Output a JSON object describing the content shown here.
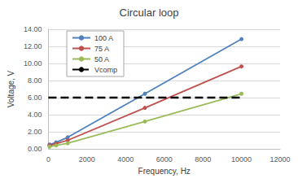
{
  "chart_data": {
    "type": "line",
    "title": "Circular loop",
    "x_label": "Frequency, Hz",
    "y_label": "Voltage, V",
    "series": [
      {
        "name": "100 A",
        "color": "#4F81BD",
        "marker": "circle",
        "line_style": "solid",
        "x": [
          60,
          400,
          1000,
          5000,
          10000
        ],
        "values": [
          0.5,
          0.75,
          1.35,
          6.45,
          12.85
        ]
      },
      {
        "name": "75 A",
        "color": "#C0504D",
        "marker": "circle",
        "line_style": "solid",
        "x": [
          60,
          400,
          1000,
          5000,
          10000
        ],
        "values": [
          0.4,
          0.6,
          1.0,
          4.8,
          9.65
        ]
      },
      {
        "name": "50 A",
        "color": "#9BBB59",
        "marker": "circle",
        "line_style": "solid",
        "x": [
          60,
          400,
          1000,
          5000,
          10000
        ],
        "values": [
          0.25,
          0.4,
          0.65,
          3.2,
          6.45
        ]
      },
      {
        "name": "Vcomp",
        "color": "#000000",
        "marker": "none",
        "line_style": "dashed",
        "x": [
          0,
          10000
        ],
        "values": [
          6,
          6
        ]
      }
    ],
    "xlim": [
      0,
      12000
    ],
    "xticks": [
      0,
      2000,
      4000,
      6000,
      8000,
      10000,
      12000
    ],
    "ylim": [
      0,
      14
    ],
    "yticks": [
      {
        "value": 0,
        "label": "0.00"
      },
      {
        "value": 2,
        "label": "2.00"
      },
      {
        "value": 4,
        "label": "4.00"
      },
      {
        "value": 6,
        "label": "6.00"
      },
      {
        "value": 8,
        "label": "8.00"
      },
      {
        "value": 10,
        "label": "10.00"
      },
      {
        "value": 12,
        "label": "12.00"
      },
      {
        "value": 14,
        "label": "14.00"
      }
    ],
    "grid": true,
    "legend": "upper left"
  }
}
